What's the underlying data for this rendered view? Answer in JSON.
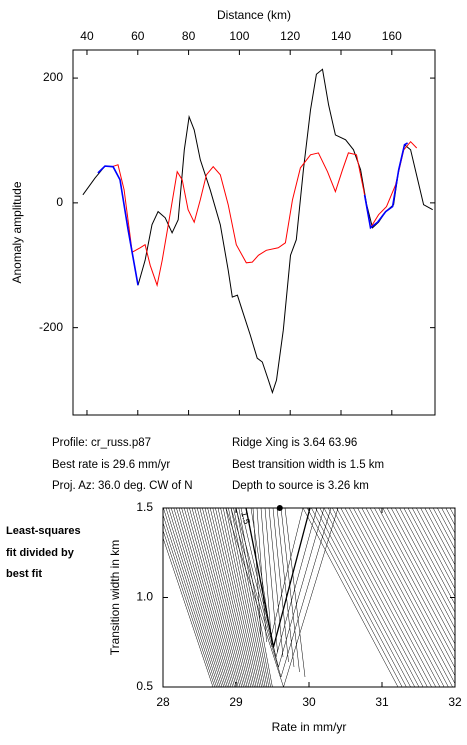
{
  "info": {
    "left": [
      "Profile: cr_russ.p87",
      "Best rate is 29.6 mm/yr",
      "Proj. Az: 36.0 deg. CW of N"
    ],
    "right": [
      "Ridge Xing is 3.64 63.96",
      "Best transition width is 1.5 km",
      "Depth to source is   3.26 km"
    ]
  },
  "chart_data": [
    {
      "type": "line",
      "xlabel": "Distance (km)",
      "ylabel": "Anomaly amplitude",
      "xlim": [
        34.5,
        177
      ],
      "xticks": [
        40,
        60,
        80,
        100,
        120,
        140,
        160
      ],
      "ylim": [
        -340,
        245
      ],
      "yticks": [
        -200,
        0,
        200
      ],
      "series": [
        {
          "color": "#000000",
          "x": [
            38.4,
            43.2,
            47.1,
            50.3,
            53,
            56.2,
            60.1,
            62.9,
            65.6,
            68,
            70.8,
            73.5,
            75.9,
            78.3,
            80.2,
            82.2,
            84.6,
            88.5,
            92.5,
            95.6,
            97.2,
            99.2,
            101.1,
            104.3,
            107,
            109,
            111.4,
            113,
            114.6,
            117.3,
            120.1,
            122.4,
            125.2,
            128,
            130.3,
            132.7,
            135.1,
            137.8,
            141.8,
            144.9,
            147.7,
            150.1,
            152.4,
            154.8,
            157.6,
            160.7,
            162.7,
            165,
            167.4,
            170.2,
            172.5,
            176.1
          ],
          "values": [
            13,
            40,
            59,
            58,
            37,
            -43,
            -132,
            -92,
            -35,
            -14,
            -24,
            -48,
            -27,
            85,
            138,
            117,
            69,
            21,
            -35,
            -108,
            -151,
            -148,
            -172,
            -212,
            -249,
            -255,
            -284,
            -304,
            -284,
            -204,
            -84,
            -59,
            53,
            149,
            206,
            214,
            157,
            109,
            101,
            85,
            53,
            -3,
            -40,
            -31,
            -14,
            -3,
            53,
            93,
            85,
            37,
            -3,
            -11
          ]
        },
        {
          "color": "#ff0000",
          "x": [
            49.9,
            52.2,
            54.6,
            57.8,
            60.9,
            62.9,
            64.9,
            67.6,
            69.6,
            72.7,
            75.5,
            77.5,
            79.8,
            82.2,
            84.6,
            87,
            89.7,
            92.5,
            95.6,
            98.8,
            102.7,
            105.1,
            107.5,
            110.6,
            115.3,
            118.1,
            120.9,
            124,
            128,
            131.1,
            134.7,
            137.8,
            140.6,
            142.9,
            146.1,
            148.9,
            151.6,
            154.8,
            157.9,
            161.5,
            164.7,
            167.4,
            169.8
          ],
          "values": [
            58,
            61,
            21,
            -79,
            -72,
            -67,
            -100,
            -132,
            -92,
            -19,
            50,
            37,
            -11,
            -31,
            5,
            45,
            58,
            45,
            -3,
            -67,
            -96,
            -95,
            -84,
            -76,
            -72,
            -64,
            5,
            56,
            77,
            80,
            50,
            18,
            53,
            80,
            77,
            21,
            -40,
            -19,
            -6,
            29,
            85,
            98,
            88
          ]
        },
        {
          "color": "#0000ff",
          "x": [
            44.3,
            47.1,
            50.3,
            53,
            56.2,
            60.1,
            100,
            149.3,
            151.6,
            154.4,
            157.6,
            160.3,
            162.7,
            165,
            166.2
          ],
          "values": [
            48,
            59,
            58,
            37,
            -43,
            -132,
            null,
            13,
            -40,
            -31,
            -14,
            -6,
            53,
            93,
            96
          ]
        }
      ]
    },
    {
      "type": "contour",
      "xlabel": "Rate in mm/yr",
      "ylabel": "Transition width in km",
      "xlim": [
        28,
        32
      ],
      "xticks": [
        28,
        29,
        30,
        31,
        32
      ],
      "ylim": [
        0.5,
        1.5
      ],
      "yticks": [
        0.5,
        {
          "value": 1,
          "label": "1.0"
        },
        1.5
      ],
      "contour_label": "1.5",
      "best_fit": {
        "x": 29.6,
        "y": 1.5
      },
      "note": [
        "Least-squares",
        "fit divided by",
        "best fit"
      ]
    }
  ]
}
